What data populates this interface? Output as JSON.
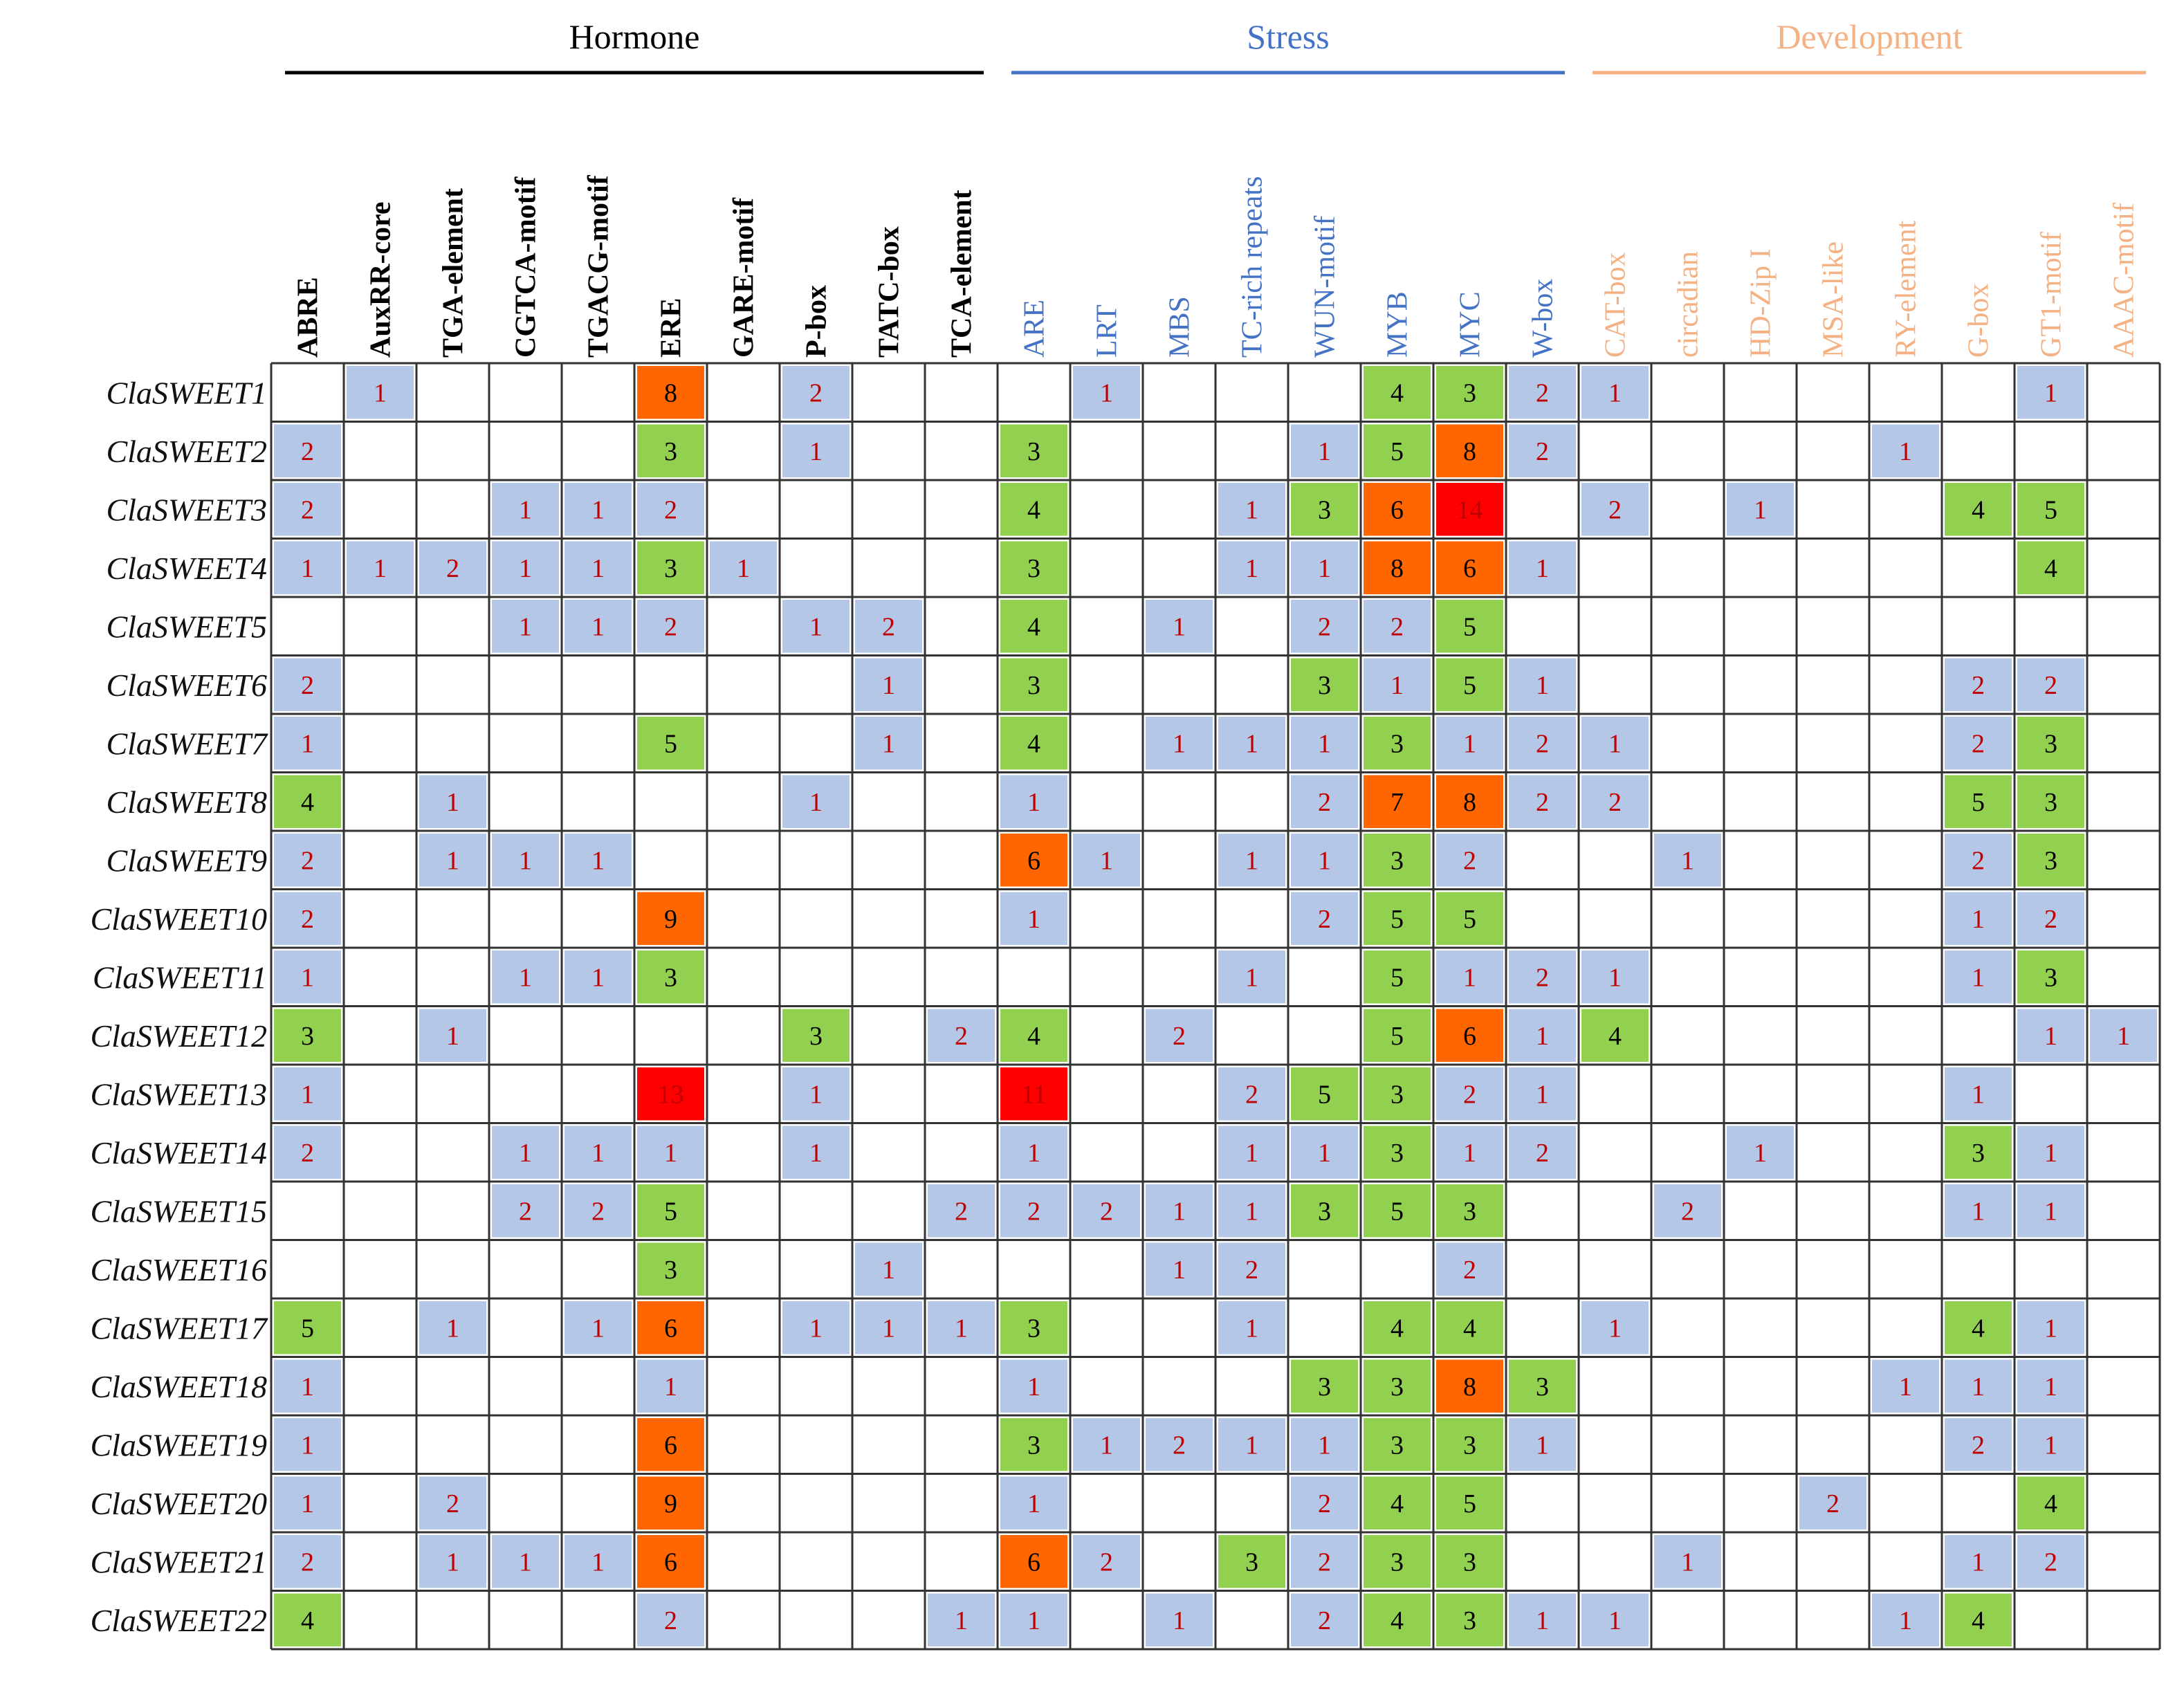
{
  "chart_data": {
    "type": "heatmap",
    "groups": [
      {
        "name": "Hormone",
        "color": "#000000",
        "columns": [
          "ABRE",
          "AuxRR-core",
          "TGA-element",
          "CGTCA-motif",
          "TGACG-motif",
          "ERE",
          "GARE-motif",
          "P-box",
          "TATC-box",
          "TCA-element"
        ]
      },
      {
        "name": "Stress",
        "color": "#4472C4",
        "columns": [
          "ARE",
          "LRT",
          "MBS",
          "TC-rich repeats",
          "WUN-motif",
          "MYB",
          "MYC",
          "W-box"
        ]
      },
      {
        "name": "Development",
        "color": "#F4B183",
        "columns": [
          "CAT-box",
          "circadian",
          "HD-Zip I",
          "MSA-like",
          "RY-element",
          "G-box",
          "GT1-motif",
          "AAAC-motif"
        ]
      }
    ],
    "rows": [
      "ClaSWEET1",
      "ClaSWEET2",
      "ClaSWEET3",
      "ClaSWEET4",
      "ClaSWEET5",
      "ClaSWEET6",
      "ClaSWEET7",
      "ClaSWEET8",
      "ClaSWEET9",
      "ClaSWEET10",
      "ClaSWEET11",
      "ClaSWEET12",
      "ClaSWEET13",
      "ClaSWEET14",
      "ClaSWEET15",
      "ClaSWEET16",
      "ClaSWEET17",
      "ClaSWEET18",
      "ClaSWEET19",
      "ClaSWEET20",
      "ClaSWEET21",
      "ClaSWEET22"
    ],
    "values": [
      [
        null,
        1,
        null,
        null,
        null,
        8,
        null,
        2,
        null,
        null,
        null,
        1,
        null,
        null,
        null,
        4,
        3,
        2,
        1,
        null,
        null,
        null,
        null,
        null,
        1,
        null
      ],
      [
        2,
        null,
        null,
        null,
        null,
        3,
        null,
        1,
        null,
        null,
        3,
        null,
        null,
        null,
        1,
        5,
        8,
        2,
        null,
        null,
        null,
        null,
        1,
        null,
        null,
        null
      ],
      [
        2,
        null,
        null,
        1,
        1,
        2,
        null,
        null,
        null,
        null,
        4,
        null,
        null,
        1,
        3,
        6,
        14,
        null,
        2,
        null,
        1,
        null,
        null,
        4,
        5,
        null
      ],
      [
        1,
        1,
        2,
        1,
        1,
        3,
        1,
        null,
        null,
        null,
        3,
        null,
        null,
        1,
        1,
        8,
        6,
        1,
        null,
        null,
        null,
        null,
        null,
        null,
        4,
        null
      ],
      [
        null,
        null,
        null,
        1,
        1,
        2,
        null,
        1,
        2,
        null,
        4,
        null,
        1,
        null,
        2,
        2,
        5,
        null,
        null,
        null,
        null,
        null,
        null,
        null,
        null,
        null
      ],
      [
        2,
        null,
        null,
        null,
        null,
        null,
        null,
        null,
        1,
        null,
        3,
        null,
        null,
        null,
        3,
        1,
        5,
        1,
        null,
        null,
        null,
        null,
        null,
        2,
        2,
        null
      ],
      [
        1,
        null,
        null,
        null,
        null,
        5,
        null,
        null,
        1,
        null,
        4,
        null,
        1,
        1,
        1,
        3,
        1,
        2,
        1,
        null,
        null,
        null,
        null,
        2,
        3,
        null
      ],
      [
        4,
        null,
        1,
        null,
        null,
        null,
        null,
        1,
        null,
        null,
        1,
        null,
        null,
        null,
        2,
        7,
        8,
        2,
        2,
        null,
        null,
        null,
        null,
        5,
        3,
        null
      ],
      [
        2,
        null,
        1,
        1,
        1,
        null,
        null,
        null,
        null,
        null,
        6,
        1,
        null,
        1,
        1,
        3,
        2,
        null,
        null,
        1,
        null,
        null,
        null,
        2,
        3,
        null
      ],
      [
        2,
        null,
        null,
        null,
        null,
        9,
        null,
        null,
        null,
        null,
        1,
        null,
        null,
        null,
        2,
        5,
        5,
        null,
        null,
        null,
        null,
        null,
        null,
        1,
        2,
        null
      ],
      [
        1,
        null,
        null,
        1,
        1,
        3,
        null,
        null,
        null,
        null,
        null,
        null,
        null,
        1,
        null,
        5,
        1,
        2,
        1,
        null,
        null,
        null,
        null,
        1,
        3,
        null
      ],
      [
        3,
        null,
        1,
        null,
        null,
        null,
        null,
        3,
        null,
        2,
        4,
        null,
        2,
        null,
        null,
        5,
        6,
        1,
        4,
        null,
        null,
        null,
        null,
        null,
        1,
        1
      ],
      [
        1,
        null,
        null,
        null,
        null,
        13,
        null,
        1,
        null,
        null,
        11,
        null,
        null,
        2,
        5,
        3,
        2,
        1,
        null,
        null,
        null,
        null,
        null,
        1,
        null,
        null
      ],
      [
        2,
        null,
        null,
        1,
        1,
        1,
        null,
        1,
        null,
        null,
        1,
        null,
        null,
        1,
        1,
        3,
        1,
        2,
        null,
        null,
        1,
        null,
        null,
        3,
        1,
        null
      ],
      [
        null,
        null,
        null,
        2,
        2,
        5,
        null,
        null,
        null,
        2,
        2,
        2,
        1,
        1,
        3,
        5,
        3,
        null,
        null,
        2,
        null,
        null,
        null,
        1,
        1,
        null
      ],
      [
        null,
        null,
        null,
        null,
        null,
        3,
        null,
        null,
        1,
        null,
        null,
        null,
        1,
        2,
        null,
        null,
        2,
        null,
        null,
        null,
        null,
        null,
        null,
        null,
        null,
        null
      ],
      [
        5,
        null,
        1,
        null,
        1,
        6,
        null,
        1,
        1,
        1,
        3,
        null,
        null,
        1,
        null,
        4,
        4,
        null,
        1,
        null,
        null,
        null,
        null,
        4,
        1,
        null
      ],
      [
        1,
        null,
        null,
        null,
        null,
        1,
        null,
        null,
        null,
        null,
        1,
        null,
        null,
        null,
        3,
        3,
        8,
        3,
        null,
        null,
        null,
        null,
        1,
        1,
        1,
        null
      ],
      [
        1,
        null,
        null,
        null,
        null,
        6,
        null,
        null,
        null,
        null,
        3,
        1,
        2,
        1,
        1,
        3,
        3,
        1,
        null,
        null,
        null,
        null,
        null,
        2,
        1,
        null
      ],
      [
        1,
        null,
        2,
        null,
        null,
        9,
        null,
        null,
        null,
        null,
        1,
        null,
        null,
        null,
        2,
        4,
        5,
        null,
        null,
        null,
        null,
        2,
        null,
        null,
        4,
        null
      ],
      [
        2,
        null,
        1,
        1,
        1,
        6,
        null,
        null,
        null,
        null,
        6,
        2,
        null,
        3,
        2,
        3,
        3,
        null,
        null,
        1,
        null,
        null,
        null,
        1,
        2,
        null
      ],
      [
        4,
        null,
        null,
        null,
        null,
        2,
        null,
        null,
        null,
        1,
        1,
        null,
        1,
        null,
        2,
        4,
        3,
        1,
        1,
        null,
        null,
        null,
        1,
        4,
        null,
        null
      ]
    ],
    "color_scale": [
      {
        "min": 1,
        "max": 2,
        "color": "#B4C7E7"
      },
      {
        "min": 3,
        "max": 5,
        "color": "#92D050"
      },
      {
        "min": 6,
        "max": 9,
        "color": "#FF6600"
      },
      {
        "min": 10,
        "max": 14,
        "color": "#FF0000"
      }
    ],
    "value_text_color_light": "#C00000",
    "value_text_color_dark": "#000000",
    "grid": true
  }
}
